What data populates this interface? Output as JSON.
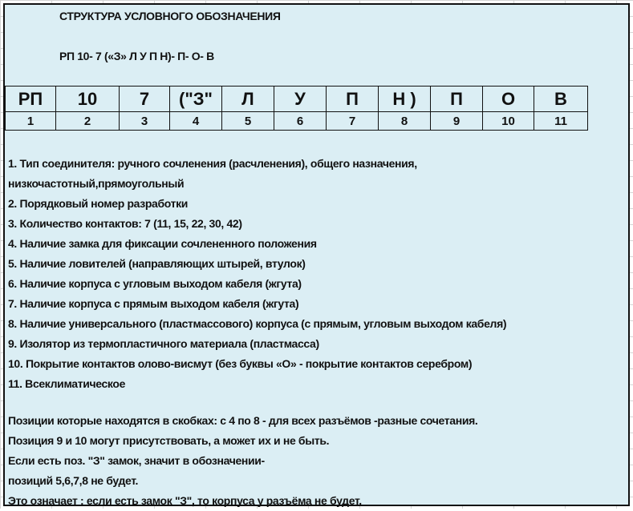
{
  "title": "СТРУКТУРА УСЛОВНОГО ОБОЗНАЧЕНИЯ",
  "designation": "РП 10- 7 («З» Л У П Н)- П- О- В",
  "table": {
    "symbols": [
      "РП",
      "10",
      "7",
      "(\"З\"",
      "Л",
      "У",
      "П",
      "Н )",
      "П",
      "О",
      "В"
    ],
    "positions": [
      "1",
      "2",
      "3",
      "4",
      "5",
      "6",
      "7",
      "8",
      "9",
      "10",
      "11"
    ]
  },
  "items": [
    "1. Тип соединителя: ручного сочленения (расчленения), общего назначения,",
    "низкочастотный,прямоугольный",
    "2. Порядковый номер разработки",
    "3. Количество контактов: 7 (11, 15, 22, 30, 42)",
    "4. Наличие замка для фиксации сочлененного положения",
    "5. Наличие ловителей (направляющих штырей, втулок)",
    "6. Наличие корпуса с угловым выходом кабеля (жгута)",
    "7. Наличие корпуса с прямым выходом кабеля (жгута)",
    "8. Наличие универсального (пластмассового) корпуса (с прямым, угловым выходом кабеля)",
    "9. Изолятор из термопластичного материала (пластмасса)",
    "10. Покрытие контактов олово-висмут (без буквы «О» - покрытие контактов серебром)",
    "11. Всеклиматическое"
  ],
  "notes": [
    "Позиции которые находятся в скобках:  с 4 по 8 - для всех разъёмов -разные сочетания.",
    "Позиция 9 и 10 могут присутствовать, а может их и не быть.",
    "Если есть поз. \"З\" замок, значит в обозначении-",
    "позиций  5,6,7,8 не будет.",
    "Это означает :  если есть замок \"З\", то корпуса у разъёма не будет."
  ],
  "colors": {
    "background": "#dbeef4",
    "border": "#111111"
  }
}
